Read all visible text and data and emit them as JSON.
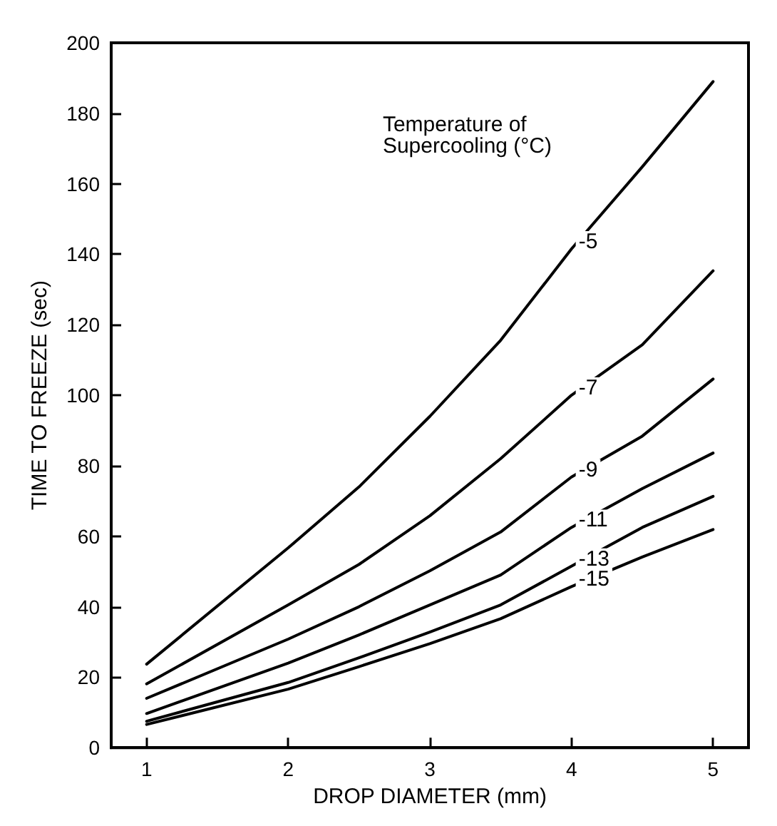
{
  "chart_data": {
    "type": "line",
    "xlabel": "DROP DIAMETER (mm)",
    "ylabel": "TIME TO FREEZE (sec)",
    "legend_title": "Temperature of\nSupercooling (°C)",
    "x": [
      1,
      2,
      2.5,
      3,
      3.5,
      4,
      4.5,
      5
    ],
    "xlim": [
      0.75,
      5.25
    ],
    "xticks": [
      1,
      2,
      3,
      4,
      5
    ],
    "ylim": [
      0,
      200
    ],
    "yticks": [
      0,
      20,
      40,
      60,
      80,
      100,
      120,
      140,
      160,
      180,
      200
    ],
    "grid": false,
    "legend": false,
    "marker": "none",
    "line_style": "solid",
    "series": [
      {
        "name": "-5",
        "color": "#000000",
        "values": [
          23.7,
          56.7,
          74,
          94,
          115.6,
          141.5,
          164.8,
          189
        ]
      },
      {
        "name": "-7",
        "color": "#000000",
        "values": [
          18.1,
          40.5,
          52,
          65.8,
          82,
          100,
          114.3,
          135.3
        ]
      },
      {
        "name": "-9",
        "color": "#000000",
        "values": [
          14,
          30.8,
          40,
          50.2,
          61.2,
          76.8,
          88.4,
          104.6
        ]
      },
      {
        "name": "-11",
        "color": "#000000",
        "values": [
          9.7,
          24,
          32,
          40.5,
          49,
          62.5,
          73.5,
          83.6
        ]
      },
      {
        "name": "-13",
        "color": "#000000",
        "values": [
          7.5,
          18.5,
          25.5,
          32.8,
          40.5,
          51.5,
          62.5,
          71.3
        ]
      },
      {
        "name": "-15",
        "color": "#000000",
        "values": [
          6.6,
          16.6,
          23,
          29.5,
          36.6,
          45.7,
          54.1,
          61.9
        ]
      }
    ]
  }
}
